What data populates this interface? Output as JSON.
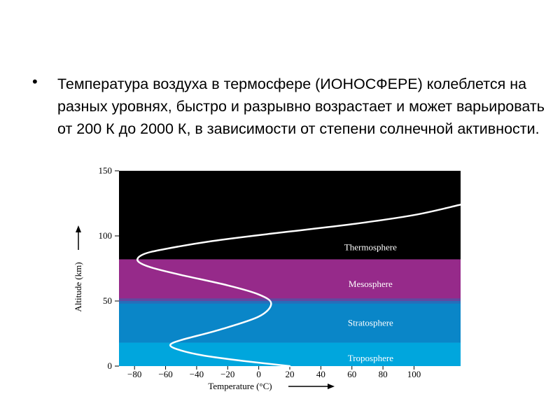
{
  "slide": {
    "bullet": "•",
    "text": "Температура воздуха в термосфере (ИОНОСФЕРЕ) колеблется на разных уровнях, быстро и разрывно возрастает и может варьировать от 200 К до 2000 К, в зависимости от степени солнечной активности."
  },
  "chart_data": {
    "type": "line",
    "xlabel": "Temperature (°C)",
    "ylabel": "Altitude (km)",
    "xlim": [
      -90,
      130
    ],
    "ylim": [
      0,
      150
    ],
    "x_ticks": [
      "−80",
      "−60",
      "−40",
      "−20",
      "0",
      "20",
      "40",
      "60",
      "80",
      "100"
    ],
    "y_ticks": [
      "0",
      "50",
      "100",
      "150"
    ],
    "layers": [
      {
        "name": "Troposphere",
        "from": 0,
        "to": 18,
        "color": "#00a6dd"
      },
      {
        "name": "Stratosphere",
        "from": 18,
        "to": 50,
        "color": "#0a86c8"
      },
      {
        "name": "Mesosphere",
        "from": 50,
        "to": 82,
        "color": "#962a8a"
      },
      {
        "name": "Thermosphere",
        "from": 82,
        "to": 150,
        "color": "#000000"
      }
    ],
    "series": [
      {
        "x": [
          20,
          -10,
          -35,
          -50,
          -57,
          -50,
          -25,
          0,
          8,
          0,
          -20,
          -50,
          -70,
          -78,
          -74,
          -60,
          -30,
          10,
          60,
          100,
          130
        ],
        "y": [
          0,
          4,
          8,
          12,
          16,
          20,
          28,
          38,
          48,
          55,
          62,
          70,
          76,
          81,
          86,
          90,
          96,
          102,
          109,
          116,
          124
        ],
        "color": "#ffffff"
      }
    ]
  }
}
